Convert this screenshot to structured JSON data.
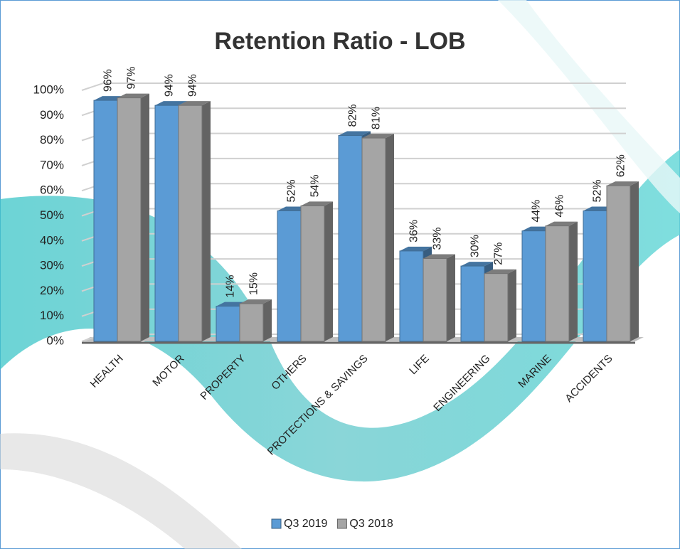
{
  "chart_data": {
    "type": "bar",
    "title": "Retention Ratio - LOB",
    "categories": [
      "HEALTH",
      "MOTOR",
      "PROPERTY",
      "OTHERS",
      "PROTECTIONS & SAVINGS",
      "LIFE",
      "ENGINEERING",
      "MARINE",
      "ACCIDENTS"
    ],
    "series": [
      {
        "name": "Q3 2019",
        "color": "#5b9bd5",
        "values": [
          96,
          94,
          14,
          52,
          82,
          36,
          30,
          44,
          52
        ],
        "value_labels": [
          "96%",
          "94%",
          "14%",
          "52%",
          "82%",
          "36%",
          "30%",
          "44%",
          "52%"
        ]
      },
      {
        "name": "Q3 2018",
        "color": "#a5a5a5",
        "values": [
          97,
          94,
          15,
          54,
          81,
          33,
          27,
          46,
          62
        ],
        "value_labels": [
          "97%",
          "94%",
          "15%",
          "54%",
          "81%",
          "33%",
          "27%",
          "46%",
          "62%"
        ]
      }
    ],
    "ylim": [
      0,
      100
    ],
    "yticks": [
      {
        "value": 0,
        "label": "0%"
      },
      {
        "value": 10,
        "label": "10%"
      },
      {
        "value": 20,
        "label": "20%"
      },
      {
        "value": 30,
        "label": "30%"
      },
      {
        "value": 40,
        "label": "40%"
      },
      {
        "value": 50,
        "label": "50%"
      },
      {
        "value": 60,
        "label": "60%"
      },
      {
        "value": 70,
        "label": "70%"
      },
      {
        "value": 80,
        "label": "80%"
      },
      {
        "value": 90,
        "label": "90%"
      },
      {
        "value": 100,
        "label": "100%"
      }
    ],
    "grid": true,
    "legend": "bottom"
  }
}
